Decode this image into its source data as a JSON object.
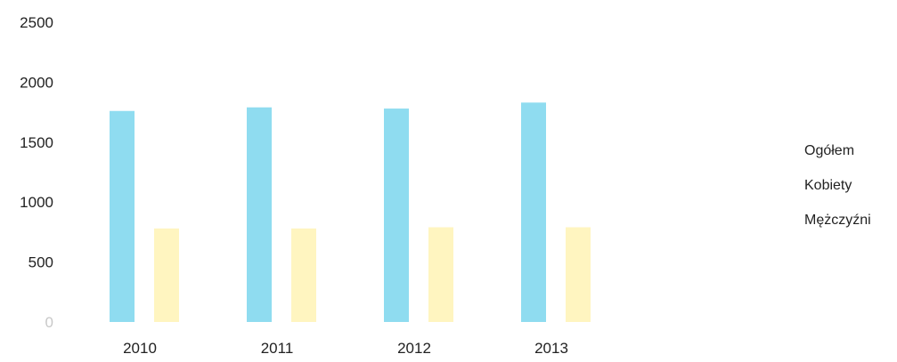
{
  "chart_data": {
    "type": "bar",
    "categories": [
      "2010",
      "2011",
      "2012",
      "2013"
    ],
    "series": [
      {
        "name": "Ogółem",
        "values": [
          1760,
          1790,
          1780,
          1830
        ],
        "color": "#8fdcf0"
      },
      {
        "name": "Kobiety",
        "values": [
          0,
          0,
          0,
          0
        ],
        "color": "#ffffff"
      },
      {
        "name": "Mężczyźni",
        "values": [
          780,
          780,
          790,
          790
        ],
        "color": "#fff5c0"
      }
    ],
    "y_ticks": [
      "0",
      "500",
      "1000",
      "1500",
      "2000",
      "2500"
    ],
    "ylim": [
      0,
      2500
    ],
    "grid": false,
    "legend_position": "right"
  }
}
